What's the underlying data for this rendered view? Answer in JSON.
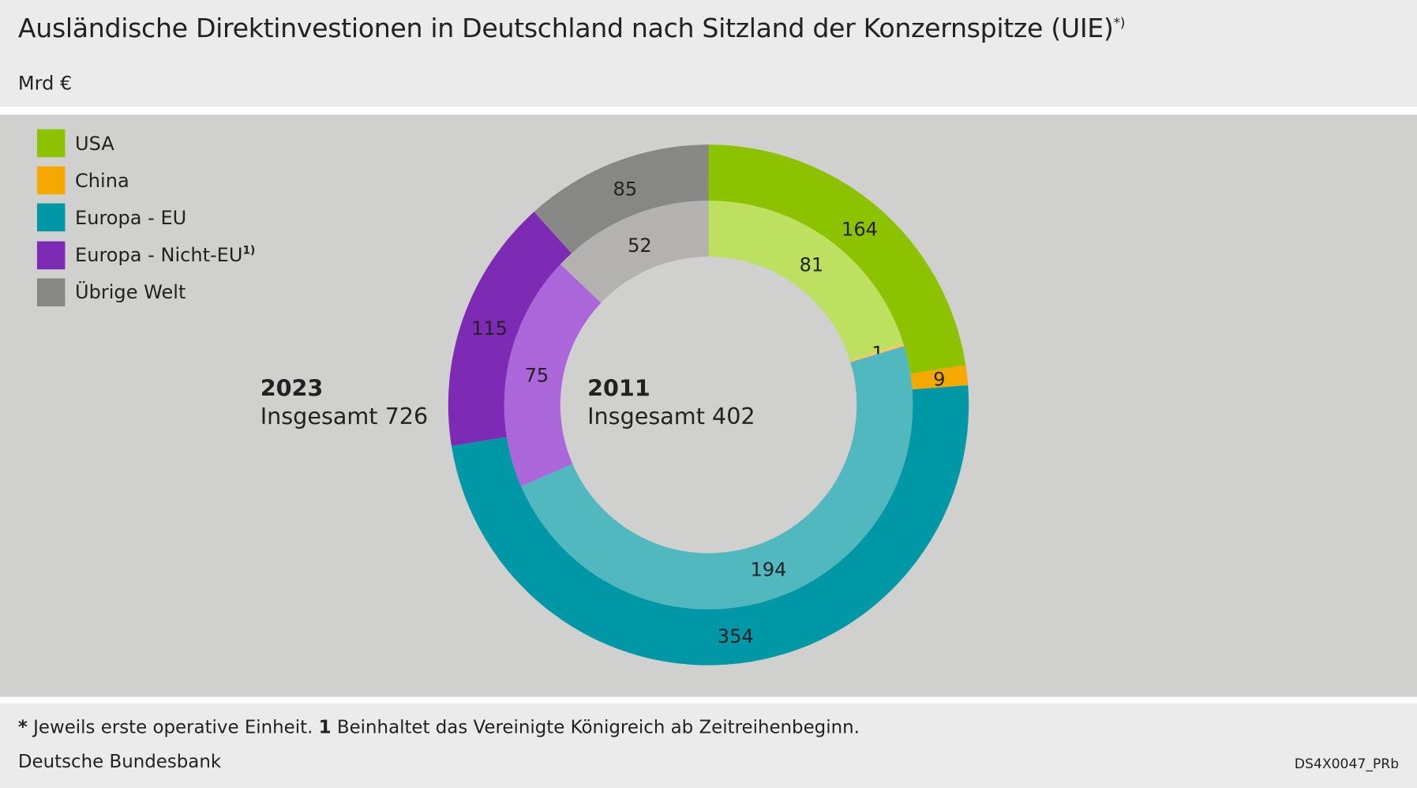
{
  "header": {
    "title": "Ausländische Direktinvestionen in Deutschland nach Sitzland der Konzernspitze (UIE)",
    "title_mark": "*)",
    "unit": "Mrd €"
  },
  "footer": {
    "note_star": "*",
    "note1": "Jeweils erste operative Einheit.",
    "note_num": "1",
    "note2": "Beinhaltet das Vereinigte Königreich ab Zeitreihenbeginn.",
    "source": "Deutsche Bundesbank",
    "code": "DS4X0047_PRb"
  },
  "chart_data": {
    "type": "pie",
    "variant": "nested-donut",
    "categories": [
      "USA",
      "China",
      "Europa - EU",
      "Europa - Nicht-EU",
      "Übrige Welt"
    ],
    "legend_marks": [
      "",
      "",
      "",
      "1)",
      ""
    ],
    "legend_position": "top-left",
    "colors_outer": [
      "#8dc200",
      "#f5a800",
      "#0098a6",
      "#7d2ab5",
      "#878786"
    ],
    "colors_inner": [
      "#bde060",
      "#f8c860",
      "#52b8bf",
      "#ab66d9",
      "#b3b2b0"
    ],
    "series": [
      {
        "name": "2023",
        "ring": "outer",
        "total_label": "Insgesamt 726",
        "values": [
          164,
          9,
          354,
          115,
          85
        ]
      },
      {
        "name": "2011",
        "ring": "inner",
        "total_label": "Insgesamt 402",
        "values": [
          81,
          1,
          194,
          75,
          52
        ]
      }
    ]
  }
}
